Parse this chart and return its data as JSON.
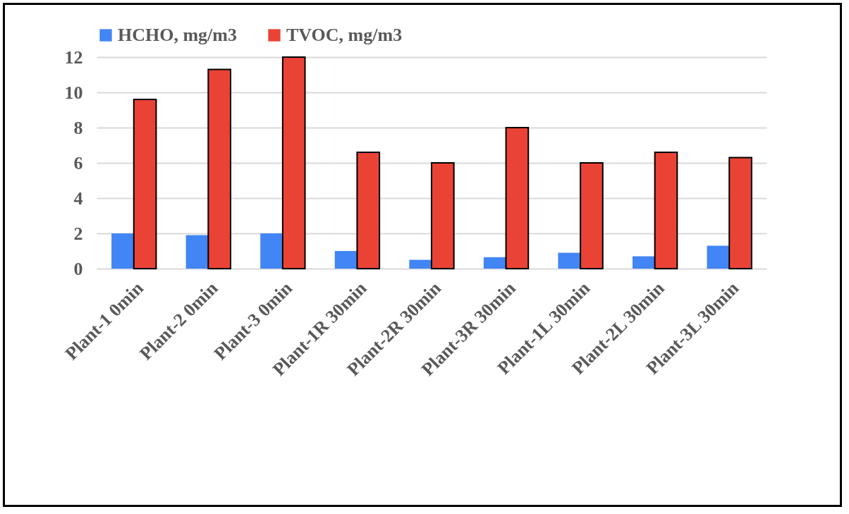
{
  "chart_data": {
    "type": "bar",
    "categories": [
      "Plant-1 0min",
      "Plant-2 0min",
      "Plant-3 0min",
      "Plant-1R 30min",
      "Plant-2R 30min",
      "Plant-3R 30min",
      "Plant-1L 30min",
      "Plant-2L 30min",
      "Plant-3L 30min"
    ],
    "series": [
      {
        "name": "HCHO, mg/m3",
        "color": "#4285f4",
        "values": [
          2.0,
          1.9,
          2.0,
          1.0,
          0.5,
          0.65,
          0.9,
          0.7,
          1.3
        ]
      },
      {
        "name": "TVOC, mg/m3",
        "color": "#ea4335",
        "values": [
          9.6,
          11.3,
          12.0,
          6.6,
          6.0,
          8.0,
          6.0,
          6.6,
          6.3
        ]
      }
    ],
    "ylim": [
      0,
      12
    ],
    "yticks": [
      0,
      2,
      4,
      6,
      8,
      10,
      12
    ],
    "grid": "y",
    "legend": "top"
  }
}
